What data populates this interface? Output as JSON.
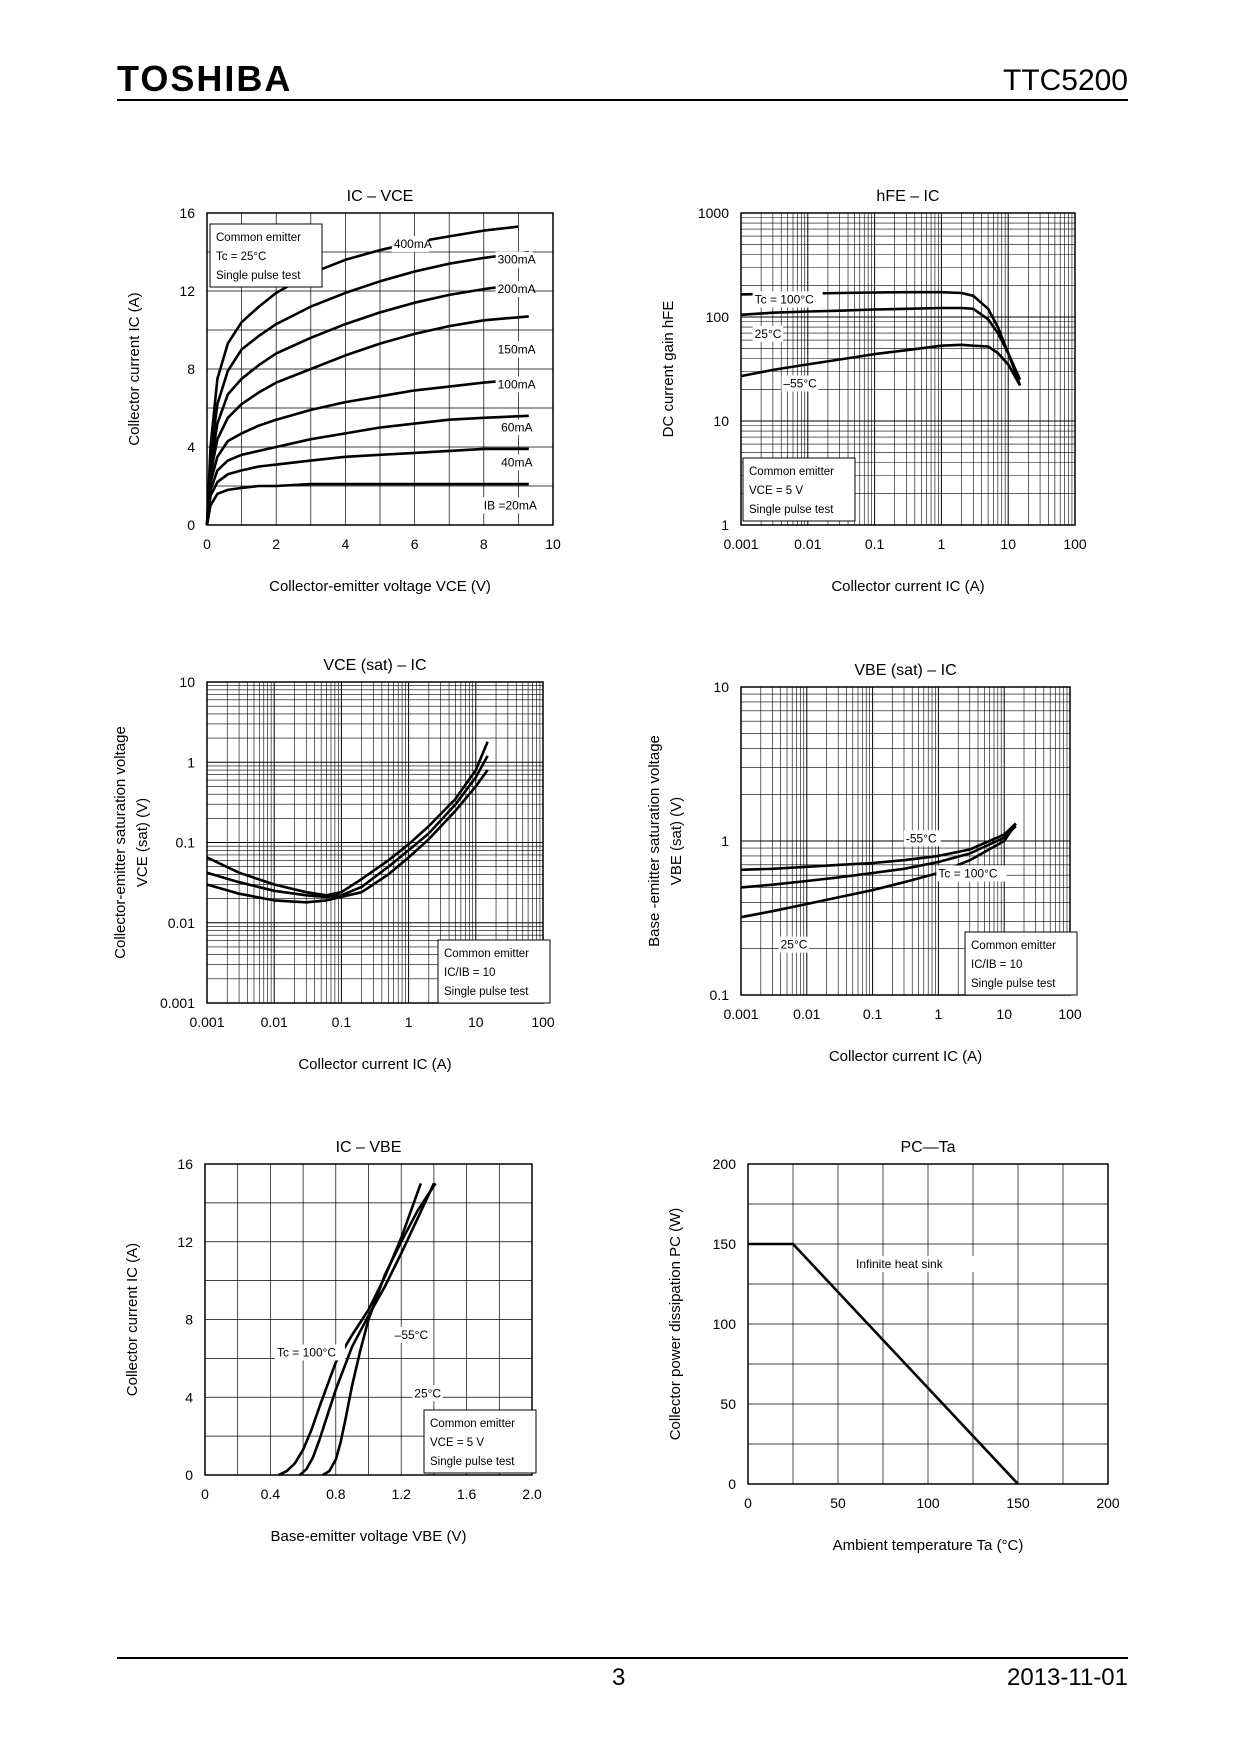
{
  "header": {
    "brand": "TOSHIBA",
    "part_number": "TTC5200"
  },
  "footer": {
    "page": "3",
    "date": "2013-11-01"
  },
  "chart_data": [
    {
      "id": "ic_vce",
      "type": "line",
      "title": "IC – VCE",
      "xlabel": "Collector-emitter voltage    VCE    (V)",
      "ylabel": "Collector current    IC    (A)",
      "xscale": "linear",
      "yscale": "linear",
      "xlim": [
        0,
        10
      ],
      "ylim": [
        0,
        16
      ],
      "xticks": [
        0,
        2,
        4,
        6,
        8,
        10
      ],
      "yticks": [
        0,
        4,
        8,
        12,
        16
      ],
      "xtick_labels": [
        "0",
        "2",
        "4",
        "6",
        "8",
        "10"
      ],
      "ytick_labels": [
        "0",
        "4",
        "8",
        "12",
        "16"
      ],
      "legend_box": [
        "Common emitter",
        "Tc = 25°C",
        "Single pulse test"
      ],
      "series": [
        {
          "name": "400mA",
          "x": [
            0,
            0.1,
            0.3,
            0.6,
            1,
            1.5,
            2,
            3,
            4,
            5,
            6,
            7,
            8,
            9
          ],
          "y": [
            0,
            4,
            7.5,
            9.3,
            10.4,
            11.2,
            11.9,
            12.9,
            13.6,
            14.1,
            14.5,
            14.8,
            15.1,
            15.3
          ]
        },
        {
          "name": "300mA",
          "x": [
            0,
            0.1,
            0.3,
            0.6,
            1,
            1.5,
            2,
            3,
            4,
            5,
            6,
            7,
            8,
            9.3
          ],
          "y": [
            0,
            3.5,
            6.2,
            7.9,
            9,
            9.7,
            10.3,
            11.2,
            11.9,
            12.5,
            13,
            13.4,
            13.7,
            14
          ]
        },
        {
          "name": "200mA",
          "x": [
            0,
            0.1,
            0.3,
            0.6,
            1,
            1.5,
            2,
            3,
            4,
            5,
            6,
            7,
            8,
            9.3
          ],
          "y": [
            0,
            3,
            5.2,
            6.7,
            7.5,
            8.2,
            8.8,
            9.6,
            10.3,
            10.9,
            11.4,
            11.8,
            12.1,
            12.4
          ]
        },
        {
          "name": "150mA",
          "x": [
            0,
            0.1,
            0.3,
            0.6,
            1,
            1.5,
            2,
            3,
            4,
            5,
            6,
            7,
            8,
            9.3
          ],
          "y": [
            0,
            2.6,
            4.4,
            5.5,
            6.2,
            6.8,
            7.3,
            8,
            8.7,
            9.3,
            9.8,
            10.2,
            10.5,
            10.7
          ]
        },
        {
          "name": "100mA",
          "x": [
            0,
            0.1,
            0.3,
            0.6,
            1,
            1.5,
            2,
            3,
            4,
            5,
            6,
            7,
            8,
            9.3
          ],
          "y": [
            0,
            2.2,
            3.5,
            4.3,
            4.7,
            5.1,
            5.4,
            5.9,
            6.3,
            6.6,
            6.9,
            7.1,
            7.3,
            7.5
          ]
        },
        {
          "name": "60mA",
          "x": [
            0,
            0.1,
            0.3,
            0.6,
            1,
            1.5,
            2,
            3,
            4,
            5,
            6,
            7,
            8,
            9.3
          ],
          "y": [
            0,
            1.8,
            2.8,
            3.3,
            3.6,
            3.8,
            4,
            4.4,
            4.7,
            5,
            5.2,
            5.4,
            5.5,
            5.6
          ]
        },
        {
          "name": "40mA",
          "x": [
            0,
            0.1,
            0.3,
            0.6,
            1,
            1.5,
            2,
            3,
            4,
            5,
            6,
            7,
            8,
            9.3
          ],
          "y": [
            0,
            1.5,
            2.2,
            2.6,
            2.8,
            3,
            3.1,
            3.3,
            3.5,
            3.6,
            3.7,
            3.8,
            3.9,
            3.9
          ]
        },
        {
          "name": "IB =20mA",
          "x": [
            0,
            0.1,
            0.3,
            0.6,
            1,
            1.5,
            2,
            3,
            4,
            5,
            6,
            7,
            8,
            9.3
          ],
          "y": [
            0,
            1,
            1.6,
            1.8,
            1.9,
            2,
            2,
            2.1,
            2.1,
            2.1,
            2.1,
            2.1,
            2.1,
            2.1
          ]
        }
      ],
      "annotations": [
        {
          "text": "400mA",
          "x": 5.4,
          "y": 14.2
        },
        {
          "text": "300mA",
          "x": 8.4,
          "y": 13.4
        },
        {
          "text": "200mA",
          "x": 8.4,
          "y": 11.9
        },
        {
          "text": "150mA",
          "x": 8.4,
          "y": 8.8
        },
        {
          "text": "100mA",
          "x": 8.4,
          "y": 7.0
        },
        {
          "text": "60mA",
          "x": 8.5,
          "y": 4.8
        },
        {
          "text": "40mA",
          "x": 8.5,
          "y": 3.0
        },
        {
          "text": "IB =20mA",
          "x": 8.0,
          "y": 0.8
        }
      ]
    },
    {
      "id": "hfe_ic",
      "type": "line",
      "title": "hFE – IC",
      "xlabel": "Collector current    IC    (A)",
      "ylabel": "DC current gain    hFE",
      "xscale": "log",
      "yscale": "log",
      "xlim": [
        0.001,
        100
      ],
      "ylim": [
        1,
        1000
      ],
      "xticks": [
        0.001,
        0.01,
        0.1,
        1,
        10,
        100
      ],
      "yticks": [
        1,
        10,
        100,
        1000
      ],
      "xtick_labels": [
        "0.001",
        "0.01",
        "0.1",
        "1",
        "10",
        "100"
      ],
      "ytick_labels": [
        "1",
        "10",
        "100",
        "1000"
      ],
      "legend_box": [
        "Common emitter",
        "VCE = 5 V",
        "Single pulse test"
      ],
      "series": [
        {
          "name": "Tc = 100°C",
          "x": [
            0.001,
            0.003,
            0.01,
            0.03,
            0.1,
            0.3,
            1,
            2,
            3,
            5,
            7,
            10,
            15
          ],
          "y": [
            165,
            167,
            168,
            170,
            172,
            173,
            173,
            170,
            160,
            120,
            80,
            45,
            22
          ]
        },
        {
          "name": "25°C",
          "x": [
            0.001,
            0.003,
            0.01,
            0.03,
            0.1,
            0.3,
            1,
            2,
            3,
            5,
            7,
            10,
            15
          ],
          "y": [
            105,
            110,
            113,
            115,
            118,
            120,
            122,
            122,
            120,
            95,
            70,
            45,
            25
          ]
        },
        {
          "name": "-55°C",
          "x": [
            0.001,
            0.003,
            0.01,
            0.03,
            0.1,
            0.3,
            1,
            2,
            3,
            5,
            7,
            10,
            15
          ],
          "y": [
            27,
            31,
            35,
            39,
            44,
            48,
            53,
            54,
            53,
            52,
            45,
            35,
            22
          ]
        }
      ],
      "annotations": [
        {
          "text": "Tc = 100°C",
          "x": 0.0016,
          "y": 135
        },
        {
          "text": "25°C",
          "x": 0.0016,
          "y": 63
        },
        {
          "text": "–55°C",
          "x": 0.0043,
          "y": 21
        }
      ]
    },
    {
      "id": "vcesat_ic",
      "type": "line",
      "title": "VCE (sat) – IC",
      "xlabel": "Collector current    IC    (A)",
      "ylabel": "Collector-emitter saturation voltage",
      "ylabel2": "VCE (sat)    (V)",
      "xscale": "log",
      "yscale": "log",
      "xlim": [
        0.001,
        100
      ],
      "ylim": [
        0.001,
        10
      ],
      "xticks": [
        0.001,
        0.01,
        0.1,
        1,
        10,
        100
      ],
      "yticks": [
        0.001,
        0.01,
        0.1,
        1,
        10
      ],
      "xtick_labels": [
        "0.001",
        "0.01",
        "0.1",
        "1",
        "10",
        "100"
      ],
      "ytick_labels": [
        "0.001",
        "0.01",
        "0.1",
        "1",
        "10"
      ],
      "legend_box": [
        "Common emitter",
        "IC/IB = 10",
        "Single pulse test"
      ],
      "series": [
        {
          "name": "upper",
          "x": [
            0.001,
            0.003,
            0.01,
            0.03,
            0.06,
            0.1,
            0.2,
            0.5,
            1,
            2,
            5,
            10,
            15
          ],
          "y": [
            0.065,
            0.042,
            0.03,
            0.024,
            0.022,
            0.024,
            0.035,
            0.06,
            0.095,
            0.16,
            0.35,
            0.8,
            1.8
          ]
        },
        {
          "name": "middle",
          "x": [
            0.001,
            0.003,
            0.01,
            0.03,
            0.06,
            0.1,
            0.2,
            0.5,
            1,
            2,
            5,
            10,
            15
          ],
          "y": [
            0.042,
            0.032,
            0.025,
            0.022,
            0.021,
            0.022,
            0.028,
            0.05,
            0.08,
            0.13,
            0.3,
            0.65,
            1.2
          ]
        },
        {
          "name": "lower",
          "x": [
            0.001,
            0.003,
            0.01,
            0.03,
            0.06,
            0.1,
            0.2,
            0.5,
            1,
            2,
            5,
            10,
            15
          ],
          "y": [
            0.03,
            0.023,
            0.019,
            0.018,
            0.019,
            0.021,
            0.024,
            0.04,
            0.065,
            0.11,
            0.25,
            0.5,
            0.8
          ]
        }
      ],
      "annotations": []
    },
    {
      "id": "vbesat_ic",
      "type": "line",
      "title": "VBE (sat) – IC",
      "xlabel": "Collector current    IC    (A)",
      "ylabel": "Base -emitter saturation voltage",
      "ylabel2": "VBE (sat)    (V)",
      "xscale": "log",
      "yscale": "log",
      "xlim": [
        0.001,
        100
      ],
      "ylim": [
        0.1,
        10
      ],
      "xticks": [
        0.001,
        0.01,
        0.1,
        1,
        10,
        100
      ],
      "yticks": [
        0.1,
        1,
        10
      ],
      "xtick_labels": [
        "0.001",
        "0.01",
        "0.1",
        "1",
        "10",
        "100"
      ],
      "ytick_labels": [
        "0.1",
        "1",
        "10"
      ],
      "legend_box": [
        "Common emitter",
        "IC/IB = 10",
        "Single pulse test"
      ],
      "series": [
        {
          "name": "-55°C",
          "x": [
            0.001,
            0.003,
            0.01,
            0.03,
            0.1,
            0.3,
            1,
            3,
            10,
            15
          ],
          "y": [
            0.65,
            0.66,
            0.68,
            0.7,
            0.72,
            0.75,
            0.8,
            0.88,
            1.1,
            1.3
          ]
        },
        {
          "name": "Tc = 100°C",
          "x": [
            0.001,
            0.003,
            0.01,
            0.03,
            0.1,
            0.3,
            1,
            3,
            10,
            15
          ],
          "y": [
            0.5,
            0.52,
            0.55,
            0.58,
            0.62,
            0.66,
            0.73,
            0.83,
            1.05,
            1.25
          ]
        },
        {
          "name": "25°C",
          "x": [
            0.001,
            0.003,
            0.01,
            0.03,
            0.1,
            0.3,
            1,
            3,
            10,
            15
          ],
          "y": [
            0.32,
            0.35,
            0.39,
            0.43,
            0.48,
            0.54,
            0.62,
            0.75,
            1.0,
            1.3
          ]
        }
      ],
      "annotations": [
        {
          "text": "-55°C",
          "x": 0.32,
          "y": 0.98
        },
        {
          "text": "Tc = 100°C",
          "x": 1.0,
          "y": 0.58
        },
        {
          "text": "25°C",
          "x": 0.004,
          "y": 0.2
        }
      ]
    },
    {
      "id": "ic_vbe",
      "type": "line",
      "title": "IC – VBE",
      "xlabel": "Base-emitter voltage    VBE    (V)",
      "ylabel": "Collector current    IC    (A)",
      "xscale": "linear",
      "yscale": "linear",
      "xlim": [
        0,
        2.0
      ],
      "ylim": [
        0,
        16
      ],
      "xticks": [
        0,
        0.4,
        0.8,
        1.2,
        1.6,
        2.0
      ],
      "yticks": [
        0,
        4,
        8,
        12,
        16
      ],
      "xtick_labels": [
        "0",
        "0.4",
        "0.8",
        "1.2",
        "1.6",
        "2.0"
      ],
      "ytick_labels": [
        "0",
        "4",
        "8",
        "12",
        "16"
      ],
      "legend_box": [
        "Common emitter",
        "VCE = 5 V",
        "Single pulse test"
      ],
      "series": [
        {
          "name": "Tc = 100°C",
          "x": [
            0.45,
            0.5,
            0.55,
            0.6,
            0.65,
            0.7,
            0.8,
            0.9,
            1.0,
            1.1,
            1.2,
            1.32
          ],
          "y": [
            0,
            0.2,
            0.6,
            1.3,
            2.3,
            3.5,
            5.8,
            7.2,
            8.5,
            10.2,
            12.2,
            15
          ]
        },
        {
          "name": "25°C",
          "x": [
            0.58,
            0.62,
            0.66,
            0.7,
            0.75,
            0.8,
            0.9,
            1.0,
            1.1,
            1.2,
            1.3,
            1.4
          ],
          "y": [
            0,
            0.3,
            0.9,
            1.8,
            3.1,
            4.4,
            6.6,
            8.2,
            9.7,
            11.4,
            13.2,
            15
          ]
        },
        {
          "name": "-55°C",
          "x": [
            0.72,
            0.76,
            0.8,
            0.83,
            0.86,
            0.9,
            0.95,
            1.0,
            1.1,
            1.2,
            1.3,
            1.41
          ],
          "y": [
            0,
            0.2,
            0.8,
            1.7,
            2.9,
            4.6,
            6.4,
            8.0,
            10.3,
            12.0,
            13.6,
            15
          ]
        }
      ],
      "annotations": [
        {
          "text": "Tc = 100°C",
          "x": 0.44,
          "y": 6.1
        },
        {
          "text": "–55°C",
          "x": 1.16,
          "y": 7.0
        },
        {
          "text": "25°C",
          "x": 1.28,
          "y": 4.0
        }
      ]
    },
    {
      "id": "pc_ta",
      "type": "line",
      "title": "PC—Ta",
      "xlabel": "Ambient temperature    Ta    (°C)",
      "ylabel": "Collector power dissipation    PC    (W)",
      "xscale": "linear",
      "yscale": "linear",
      "xlim": [
        0,
        200
      ],
      "ylim": [
        0,
        200
      ],
      "xticks": [
        0,
        50,
        100,
        150,
        200
      ],
      "yticks": [
        0,
        50,
        100,
        150,
        200
      ],
      "xtick_labels": [
        "0",
        "50",
        "100",
        "150",
        "200"
      ],
      "ytick_labels": [
        "0",
        "50",
        "100",
        "150",
        "200"
      ],
      "legend_box": [],
      "series": [
        {
          "name": "Infinite heat sink",
          "x": [
            0,
            25,
            150
          ],
          "y": [
            150,
            150,
            0
          ]
        }
      ],
      "annotations": [
        {
          "text": "Infinite heat sink",
          "x": 60,
          "y": 135
        }
      ]
    }
  ]
}
